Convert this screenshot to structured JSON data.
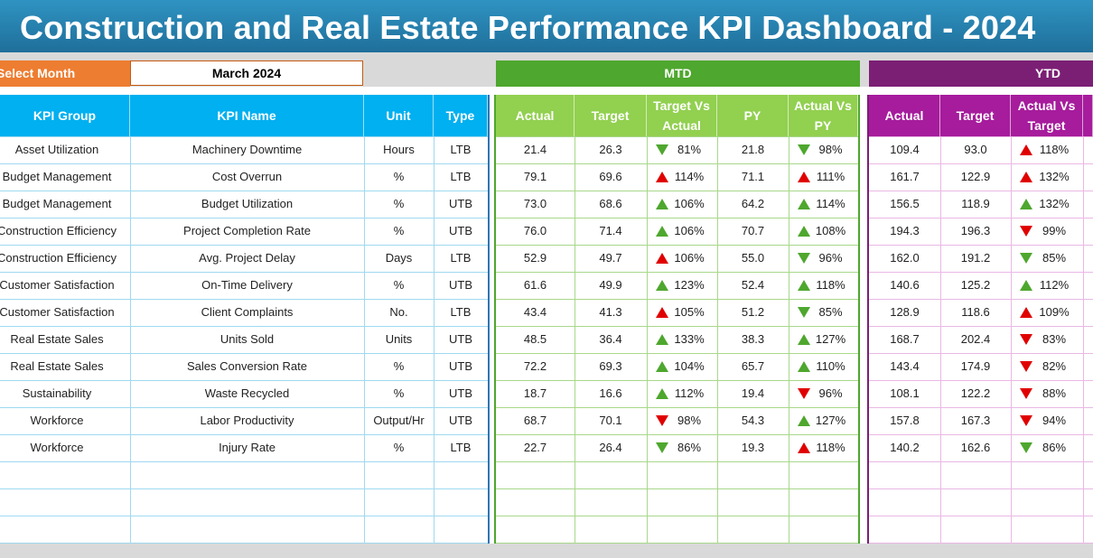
{
  "title": "Construction and Real Estate Performance KPI Dashboard - 2024",
  "selector": {
    "label": "Select Month",
    "value": "March 2024"
  },
  "sections": {
    "mtd": "MTD",
    "ytd": "YTD"
  },
  "headers": {
    "kpi_group": "KPI Group",
    "kpi_name": "KPI Name",
    "unit": "Unit",
    "type": "Type",
    "mtd": [
      "Actual",
      "Target",
      "Target Vs Actual",
      "PY",
      "Actual Vs PY"
    ],
    "ytd": [
      "Actual",
      "Target",
      "Actual Vs Target"
    ]
  },
  "colors": {
    "up_good": "#4ea72e",
    "bad": "#e00000"
  },
  "rows": [
    {
      "group": "Asset Utilization",
      "name": "Machinery Downtime",
      "unit": "Hours",
      "type": "LTB",
      "mtd_actual": "21.4",
      "mtd_target": "26.3",
      "tva_dir": "down",
      "tva_color": "green",
      "tva": "81%",
      "py": "21.8",
      "avp_dir": "down",
      "avp_color": "green",
      "avp": "98%",
      "ytd_actual": "109.4",
      "ytd_target": "93.0",
      "yav_dir": "up",
      "yav_color": "red",
      "yav": "118%"
    },
    {
      "group": "Budget Management",
      "name": "Cost Overrun",
      "unit": "%",
      "type": "LTB",
      "mtd_actual": "79.1",
      "mtd_target": "69.6",
      "tva_dir": "up",
      "tva_color": "red",
      "tva": "114%",
      "py": "71.1",
      "avp_dir": "up",
      "avp_color": "red",
      "avp": "111%",
      "ytd_actual": "161.7",
      "ytd_target": "122.9",
      "yav_dir": "up",
      "yav_color": "red",
      "yav": "132%"
    },
    {
      "group": "Budget Management",
      "name": "Budget Utilization",
      "unit": "%",
      "type": "UTB",
      "mtd_actual": "73.0",
      "mtd_target": "68.6",
      "tva_dir": "up",
      "tva_color": "green",
      "tva": "106%",
      "py": "64.2",
      "avp_dir": "up",
      "avp_color": "green",
      "avp": "114%",
      "ytd_actual": "156.5",
      "ytd_target": "118.9",
      "yav_dir": "up",
      "yav_color": "green",
      "yav": "132%"
    },
    {
      "group": "Construction Efficiency",
      "name": "Project Completion Rate",
      "unit": "%",
      "type": "UTB",
      "mtd_actual": "76.0",
      "mtd_target": "71.4",
      "tva_dir": "up",
      "tva_color": "green",
      "tva": "106%",
      "py": "70.7",
      "avp_dir": "up",
      "avp_color": "green",
      "avp": "108%",
      "ytd_actual": "194.3",
      "ytd_target": "196.3",
      "yav_dir": "down",
      "yav_color": "red",
      "yav": "99%"
    },
    {
      "group": "Construction Efficiency",
      "name": "Avg. Project Delay",
      "unit": "Days",
      "type": "LTB",
      "mtd_actual": "52.9",
      "mtd_target": "49.7",
      "tva_dir": "up",
      "tva_color": "red",
      "tva": "106%",
      "py": "55.0",
      "avp_dir": "down",
      "avp_color": "green",
      "avp": "96%",
      "ytd_actual": "162.0",
      "ytd_target": "191.2",
      "yav_dir": "down",
      "yav_color": "green",
      "yav": "85%"
    },
    {
      "group": "Customer Satisfaction",
      "name": "On-Time Delivery",
      "unit": "%",
      "type": "UTB",
      "mtd_actual": "61.6",
      "mtd_target": "49.9",
      "tva_dir": "up",
      "tva_color": "green",
      "tva": "123%",
      "py": "52.4",
      "avp_dir": "up",
      "avp_color": "green",
      "avp": "118%",
      "ytd_actual": "140.6",
      "ytd_target": "125.2",
      "yav_dir": "up",
      "yav_color": "green",
      "yav": "112%"
    },
    {
      "group": "Customer Satisfaction",
      "name": "Client Complaints",
      "unit": "No.",
      "type": "LTB",
      "mtd_actual": "43.4",
      "mtd_target": "41.3",
      "tva_dir": "up",
      "tva_color": "red",
      "tva": "105%",
      "py": "51.2",
      "avp_dir": "down",
      "avp_color": "green",
      "avp": "85%",
      "ytd_actual": "128.9",
      "ytd_target": "118.6",
      "yav_dir": "up",
      "yav_color": "red",
      "yav": "109%"
    },
    {
      "group": "Real Estate Sales",
      "name": "Units Sold",
      "unit": "Units",
      "type": "UTB",
      "mtd_actual": "48.5",
      "mtd_target": "36.4",
      "tva_dir": "up",
      "tva_color": "green",
      "tva": "133%",
      "py": "38.3",
      "avp_dir": "up",
      "avp_color": "green",
      "avp": "127%",
      "ytd_actual": "168.7",
      "ytd_target": "202.4",
      "yav_dir": "down",
      "yav_color": "red",
      "yav": "83%"
    },
    {
      "group": "Real Estate Sales",
      "name": "Sales Conversion Rate",
      "unit": "%",
      "type": "UTB",
      "mtd_actual": "72.2",
      "mtd_target": "69.3",
      "tva_dir": "up",
      "tva_color": "green",
      "tva": "104%",
      "py": "65.7",
      "avp_dir": "up",
      "avp_color": "green",
      "avp": "110%",
      "ytd_actual": "143.4",
      "ytd_target": "174.9",
      "yav_dir": "down",
      "yav_color": "red",
      "yav": "82%"
    },
    {
      "group": "Sustainability",
      "name": "Waste Recycled",
      "unit": "%",
      "type": "UTB",
      "mtd_actual": "18.7",
      "mtd_target": "16.6",
      "tva_dir": "up",
      "tva_color": "green",
      "tva": "112%",
      "py": "19.4",
      "avp_dir": "down",
      "avp_color": "red",
      "avp": "96%",
      "ytd_actual": "108.1",
      "ytd_target": "122.2",
      "yav_dir": "down",
      "yav_color": "red",
      "yav": "88%"
    },
    {
      "group": "Workforce",
      "name": "Labor Productivity",
      "unit": "Output/Hr",
      "type": "UTB",
      "mtd_actual": "68.7",
      "mtd_target": "70.1",
      "tva_dir": "down",
      "tva_color": "red",
      "tva": "98%",
      "py": "54.3",
      "avp_dir": "up",
      "avp_color": "green",
      "avp": "127%",
      "ytd_actual": "157.8",
      "ytd_target": "167.3",
      "yav_dir": "down",
      "yav_color": "red",
      "yav": "94%"
    },
    {
      "group": "Workforce",
      "name": "Injury Rate",
      "unit": "%",
      "type": "LTB",
      "mtd_actual": "22.7",
      "mtd_target": "26.4",
      "tva_dir": "down",
      "tva_color": "green",
      "tva": "86%",
      "py": "19.3",
      "avp_dir": "up",
      "avp_color": "red",
      "avp": "118%",
      "ytd_actual": "140.2",
      "ytd_target": "162.6",
      "yav_dir": "down",
      "yav_color": "green",
      "yav": "86%"
    }
  ]
}
